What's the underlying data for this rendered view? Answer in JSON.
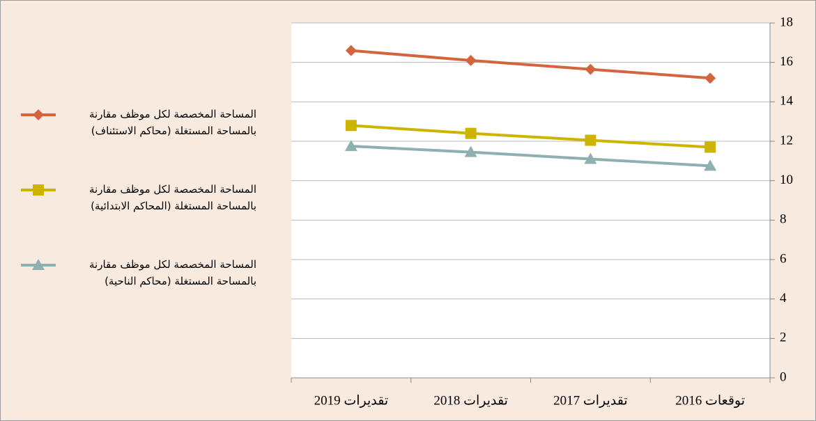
{
  "chart_data": {
    "type": "line",
    "categories": [
      "توقعات 2016",
      "تقديرات 2017",
      "تقديرات 2018",
      "تقديرات 2019"
    ],
    "x_reversed": true,
    "y_axis_side": "right",
    "series": [
      {
        "name": "المساحة المخصصة لكل موظف مقارنة بالمساحة المستغلة (محاكم الاستئناف)",
        "color": "#d4643e",
        "marker": "diamond",
        "values": [
          15.2,
          15.65,
          16.1,
          16.6
        ]
      },
      {
        "name": "المساحة المخصصة لكل موظف مقارنة بالمساحة المستغلة (المحاكم الابتدائية)",
        "color": "#cdb400",
        "marker": "square",
        "values": [
          11.7,
          12.05,
          12.4,
          12.8
        ]
      },
      {
        "name": "المساحة المخصصة لكل موظف مقارنة بالمساحة المستغلة (محاكم الناحية)",
        "color": "#8fb0b0",
        "marker": "triangle",
        "values": [
          10.75,
          11.1,
          11.45,
          11.75
        ]
      }
    ],
    "ylim": [
      0,
      18
    ],
    "yticks": [
      0,
      2,
      4,
      6,
      8,
      10,
      12,
      14,
      16,
      18
    ],
    "grid": true,
    "legend": "left"
  }
}
